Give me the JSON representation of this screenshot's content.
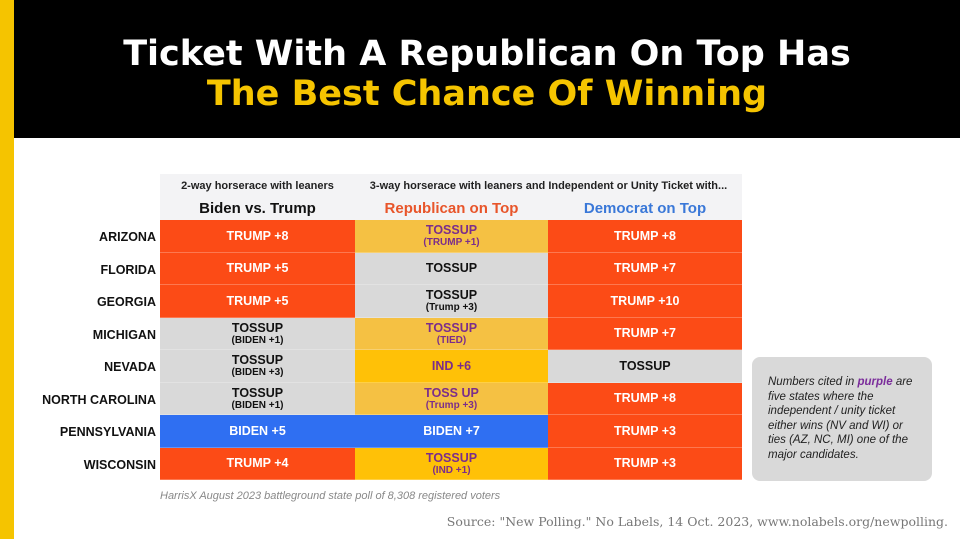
{
  "title_line1": "Ticket With A Republican On Top Has",
  "title_line2": "The Best Chance Of Winning",
  "table": {
    "group1": "2-way horserace with leaners",
    "group2": "3-way horserace with leaners and Independent or Unity Ticket with...",
    "columns": [
      "Biden vs. Trump",
      "Republican on Top",
      "Democrat on Top"
    ],
    "column_colors": [
      "#111111",
      "#e8552a",
      "#3a78d8"
    ],
    "rows": [
      {
        "state": "ARIZONA",
        "cells": [
          {
            "main": "TRUMP +8",
            "sub": "",
            "fill": "#fc4b16",
            "color": "#fff"
          },
          {
            "main": "TOSSUP",
            "sub": "(TRUMP +1)",
            "fill": "#f5c143",
            "color": "#7b2d8b"
          },
          {
            "main": "TRUMP +8",
            "sub": "",
            "fill": "#fc4b16",
            "color": "#fff"
          }
        ]
      },
      {
        "state": "FLORIDA",
        "cells": [
          {
            "main": "TRUMP +5",
            "sub": "",
            "fill": "#fc4b16",
            "color": "#fff"
          },
          {
            "main": "TOSSUP",
            "sub": "",
            "fill": "#d9d9d9",
            "color": "#111"
          },
          {
            "main": "TRUMP +7",
            "sub": "",
            "fill": "#fc4b16",
            "color": "#fff"
          }
        ]
      },
      {
        "state": "GEORGIA",
        "cells": [
          {
            "main": "TRUMP +5",
            "sub": "",
            "fill": "#fc4b16",
            "color": "#fff"
          },
          {
            "main": "TOSSUP",
            "sub": "(Trump +3)",
            "fill": "#d9d9d9",
            "color": "#111"
          },
          {
            "main": "TRUMP +10",
            "sub": "",
            "fill": "#fc4b16",
            "color": "#fff"
          }
        ]
      },
      {
        "state": "MICHIGAN",
        "cells": [
          {
            "main": "TOSSUP",
            "sub": "(BIDEN +1)",
            "fill": "#d9d9d9",
            "color": "#111"
          },
          {
            "main": "TOSSUP",
            "sub": "(TIED)",
            "fill": "#f5c143",
            "color": "#7b2d8b"
          },
          {
            "main": "TRUMP +7",
            "sub": "",
            "fill": "#fc4b16",
            "color": "#fff"
          }
        ]
      },
      {
        "state": "NEVADA",
        "cells": [
          {
            "main": "TOSSUP",
            "sub": "(BIDEN +3)",
            "fill": "#d9d9d9",
            "color": "#111"
          },
          {
            "main": "IND +6",
            "sub": "",
            "fill": "#ffc107",
            "color": "#7b2d8b"
          },
          {
            "main": "TOSSUP",
            "sub": "",
            "fill": "#d9d9d9",
            "color": "#111"
          }
        ]
      },
      {
        "state": "NORTH CAROLINA",
        "cells": [
          {
            "main": "TOSSUP",
            "sub": "(BIDEN +1)",
            "fill": "#d9d9d9",
            "color": "#111"
          },
          {
            "main": "TOSS UP",
            "sub": "(Trump +3)",
            "fill": "#f5c143",
            "color": "#7b2d8b"
          },
          {
            "main": "TRUMP +8",
            "sub": "",
            "fill": "#fc4b16",
            "color": "#fff"
          }
        ]
      },
      {
        "state": "PENNSYLVANIA",
        "cells": [
          {
            "main": "BIDEN +5",
            "sub": "",
            "fill": "#2f6ff2",
            "color": "#fff"
          },
          {
            "main": "BIDEN +7",
            "sub": "",
            "fill": "#2f6ff2",
            "color": "#fff"
          },
          {
            "main": "TRUMP +3",
            "sub": "",
            "fill": "#fc4b16",
            "color": "#fff"
          }
        ]
      },
      {
        "state": "WISCONSIN",
        "cells": [
          {
            "main": "TRUMP +4",
            "sub": "",
            "fill": "#fc4b16",
            "color": "#fff"
          },
          {
            "main": "TOSSUP",
            "sub": "(IND +1)",
            "fill": "#ffc107",
            "color": "#7b2d8b"
          },
          {
            "main": "TRUMP +3",
            "sub": "",
            "fill": "#fc4b16",
            "color": "#fff"
          }
        ]
      }
    ]
  },
  "poll_note": "HarrisX August 2023 battleground state poll of 8,308 registered voters",
  "note": {
    "pre": "Numbers cited in ",
    "highlight": "purple",
    "post": " are five states where the independent / unity ticket either wins (NV and WI) or ties (AZ, NC, MI) one of the major candidates."
  },
  "source": "Source: \"New Polling.\" No Labels, 14 Oct. 2023, www.nolabels.org/newpolling."
}
